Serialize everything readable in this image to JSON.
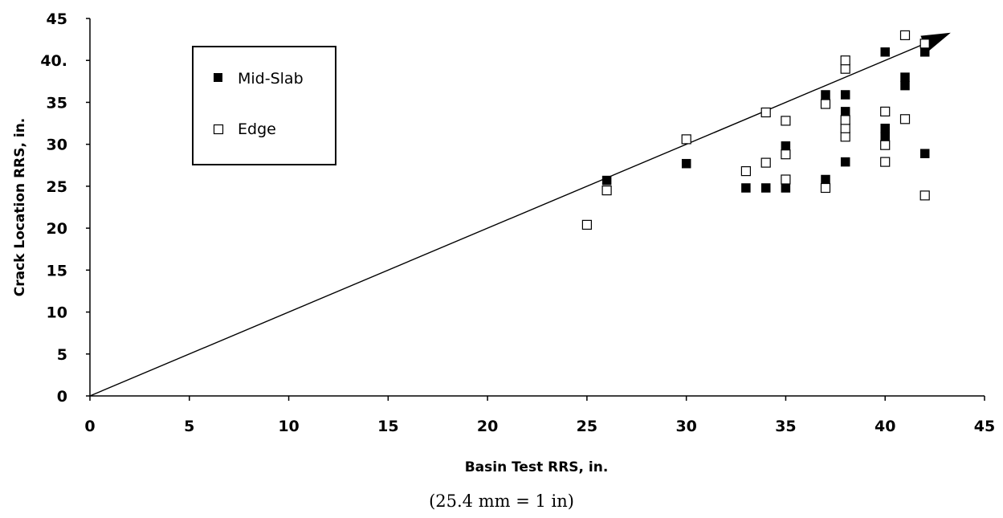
{
  "chart_data": {
    "type": "scatter",
    "xlabel": "Basin Test RRS, in.",
    "ylabel": "Crack Location RRS, in.",
    "xlim": [
      0,
      45
    ],
    "ylim": [
      0,
      45
    ],
    "x_ticks": [
      0,
      5,
      10,
      15,
      20,
      25,
      30,
      35,
      40,
      45
    ],
    "y_ticks": [
      0,
      5,
      10,
      15,
      20,
      25,
      30,
      35,
      40,
      45
    ],
    "y_tick_labels": [
      "0",
      "5",
      "10",
      "15",
      "20",
      "25",
      "30",
      "35",
      "40.",
      "45"
    ],
    "grid": false,
    "legend_position": "top-left",
    "reference_line": {
      "from": [
        0,
        0
      ],
      "to": [
        43,
        43
      ],
      "arrow": true
    },
    "series": [
      {
        "name": "Mid-Slab",
        "marker": "filled-square",
        "points": [
          [
            26,
            25.7
          ],
          [
            30,
            27.7
          ],
          [
            33,
            24.8
          ],
          [
            34,
            24.8
          ],
          [
            35,
            24.8
          ],
          [
            35,
            29.8
          ],
          [
            37,
            25.8
          ],
          [
            37,
            35.9
          ],
          [
            38,
            27.9
          ],
          [
            38,
            33.9
          ],
          [
            38,
            35.9
          ],
          [
            40,
            30.9
          ],
          [
            40,
            31.9
          ],
          [
            40,
            41
          ],
          [
            41,
            37
          ],
          [
            41,
            38
          ],
          [
            42,
            28.9
          ],
          [
            42,
            41
          ]
        ]
      },
      {
        "name": "Edge",
        "marker": "open-square",
        "points": [
          [
            25,
            20.4
          ],
          [
            26,
            24.5
          ],
          [
            30,
            30.6
          ],
          [
            33,
            26.8
          ],
          [
            34,
            27.8
          ],
          [
            34,
            33.8
          ],
          [
            35,
            25.8
          ],
          [
            35,
            28.8
          ],
          [
            35,
            32.8
          ],
          [
            37,
            24.8
          ],
          [
            37,
            34.8
          ],
          [
            38,
            30.9
          ],
          [
            38,
            31.9
          ],
          [
            38,
            32.9
          ],
          [
            38,
            39
          ],
          [
            38,
            40
          ],
          [
            40,
            27.9
          ],
          [
            40,
            29.9
          ],
          [
            40,
            33.9
          ],
          [
            41,
            33
          ],
          [
            41,
            43
          ],
          [
            42,
            23.9
          ],
          [
            42,
            42
          ]
        ]
      }
    ],
    "note": "(25.4 mm = 1 in)"
  }
}
